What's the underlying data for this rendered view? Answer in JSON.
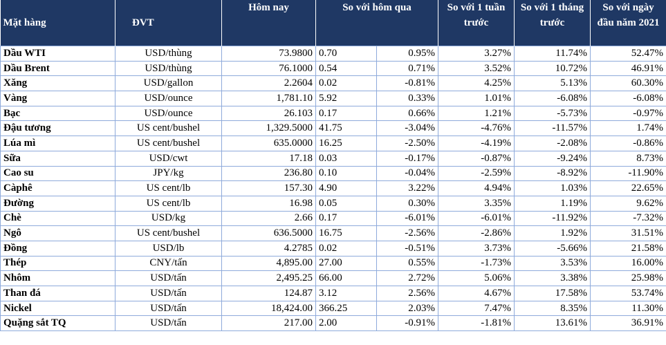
{
  "headers": {
    "item": "Mặt hàng",
    "unit": "ĐVT",
    "today": "Hôm nay",
    "vs_yesterday": "So với hôm qua",
    "vs_week": "So với 1 tuần trước",
    "vs_month": "So với 1 tháng trước",
    "vs_year": "So với ngày đầu năm 2021"
  },
  "rows": [
    {
      "name": "Dầu WTI",
      "unit": "USD/thùng",
      "today": "73.9800",
      "chg": "0.70",
      "pct": "0.95%",
      "week": "3.27%",
      "month": "11.74%",
      "year": "52.47%"
    },
    {
      "name": "Dầu Brent",
      "unit": "USD/thùng",
      "today": "76.1000",
      "chg": "0.54",
      "pct": "0.71%",
      "week": "3.52%",
      "month": "10.72%",
      "year": "46.91%"
    },
    {
      "name": "Xăng",
      "unit": "USD/gallon",
      "today": "2.2604",
      "chg": "0.02",
      "pct": "-0.81%",
      "week": "4.25%",
      "month": "5.13%",
      "year": "60.30%"
    },
    {
      "name": "Vàng",
      "unit": "USD/ounce",
      "today": "1,781.10",
      "chg": "5.92",
      "pct": "0.33%",
      "week": "1.01%",
      "month": "-6.08%",
      "year": "-6.08%"
    },
    {
      "name": "Bạc",
      "unit": "USD/ounce",
      "today": "26.103",
      "chg": "0.17",
      "pct": "0.66%",
      "week": "1.21%",
      "month": "-5.73%",
      "year": "-0.97%"
    },
    {
      "name": "Đậu tương",
      "unit": "US cent/bushel",
      "today": "1,329.5000",
      "chg": "41.75",
      "pct": "-3.04%",
      "week": "-4.76%",
      "month": "-11.57%",
      "year": "1.74%"
    },
    {
      "name": "Lúa mì",
      "unit": "US cent/bushel",
      "today": "635.0000",
      "chg": "16.25",
      "pct": "-2.50%",
      "week": "-4.19%",
      "month": "-2.08%",
      "year": "-0.86%"
    },
    {
      "name": "Sữa",
      "unit": "USD/cwt",
      "today": "17.18",
      "chg": "0.03",
      "pct": "-0.17%",
      "week": "-0.87%",
      "month": "-9.24%",
      "year": "8.73%"
    },
    {
      "name": "Cao su",
      "unit": "JPY/kg",
      "today": "236.80",
      "chg": "0.10",
      "pct": "-0.04%",
      "week": "-2.59%",
      "month": "-8.92%",
      "year": "-11.90%"
    },
    {
      "name": "Càphê",
      "unit": "US cent/lb",
      "today": "157.30",
      "chg": "4.90",
      "pct": "3.22%",
      "week": "4.94%",
      "month": "1.03%",
      "year": "22.65%"
    },
    {
      "name": "Đường",
      "unit": "US cent/lb",
      "today": "16.98",
      "chg": "0.05",
      "pct": "0.30%",
      "week": "3.35%",
      "month": "1.19%",
      "year": "9.62%"
    },
    {
      "name": "Chè",
      "unit": "USD/kg",
      "today": "2.66",
      "chg": "0.17",
      "pct": "-6.01%",
      "week": "-6.01%",
      "month": "-11.92%",
      "year": "-7.32%"
    },
    {
      "name": "Ngô",
      "unit": "US cent/bushel",
      "today": "636.5000",
      "chg": "16.75",
      "pct": "-2.56%",
      "week": "-2.86%",
      "month": "1.92%",
      "year": "31.51%"
    },
    {
      "name": "Đồng",
      "unit": "USD/lb",
      "today": "4.2785",
      "chg": "0.02",
      "pct": "-0.51%",
      "week": "3.73%",
      "month": "-5.66%",
      "year": "21.58%"
    },
    {
      "name": "Thép",
      "unit": "CNY/tấn",
      "today": "4,895.00",
      "chg": "27.00",
      "pct": "0.55%",
      "week": "-1.73%",
      "month": "3.53%",
      "year": "16.00%"
    },
    {
      "name": "Nhôm",
      "unit": "USD/tấn",
      "today": "2,495.25",
      "chg": "66.00",
      "pct": "2.72%",
      "week": "5.06%",
      "month": "3.38%",
      "year": "25.98%"
    },
    {
      "name": "Than đá",
      "unit": "USD/tấn",
      "today": "124.87",
      "chg": "3.12",
      "pct": "2.56%",
      "week": "4.67%",
      "month": "17.58%",
      "year": "53.74%"
    },
    {
      "name": "Nickel",
      "unit": "USD/tấn",
      "today": "18,424.00",
      "chg": "366.25",
      "pct": "2.03%",
      "week": "7.47%",
      "month": "8.35%",
      "year": "11.30%"
    },
    {
      "name": "Quặng sắt TQ",
      "unit": "USD/tấn",
      "today": "217.00",
      "chg": "2.00",
      "pct": "-0.91%",
      "week": "-1.81%",
      "month": "13.61%",
      "year": "36.91%"
    }
  ]
}
